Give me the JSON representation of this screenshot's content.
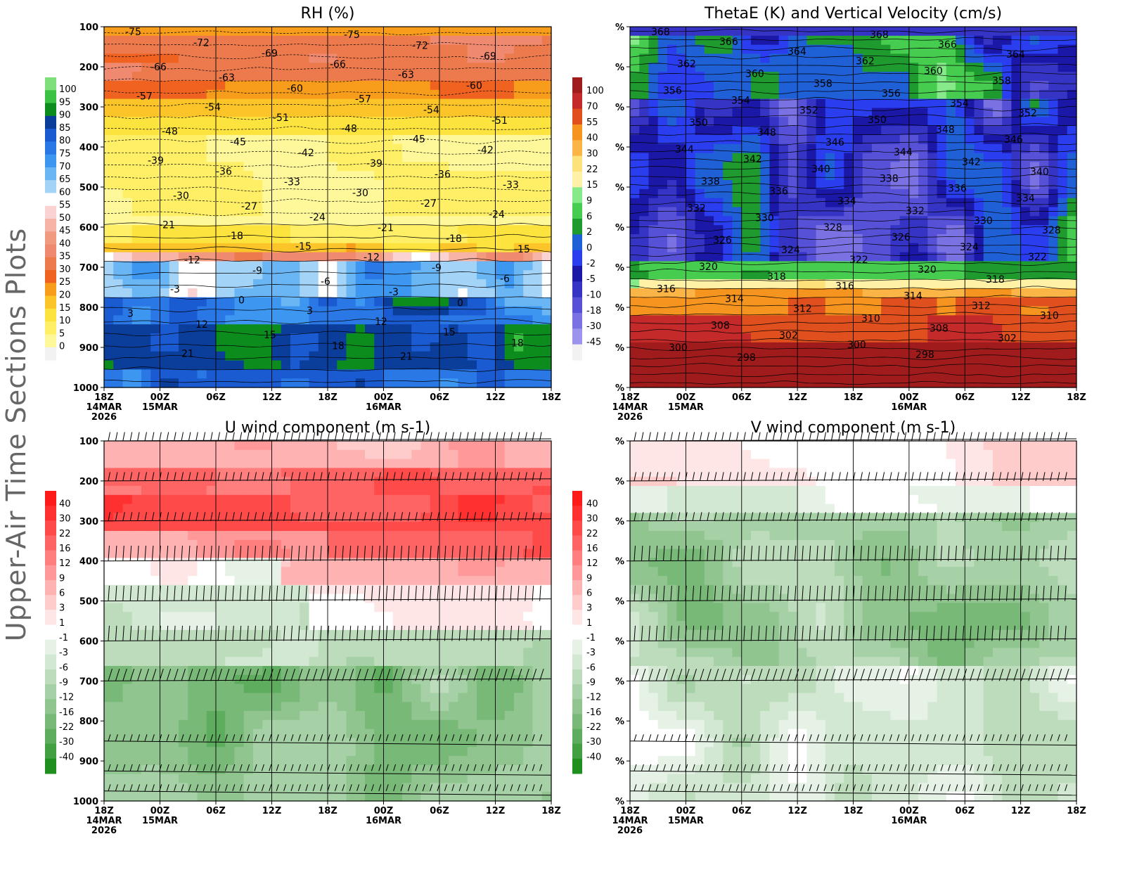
{
  "page_title": "Upper-Air Time Sections Plots",
  "chart_data": [
    {
      "id": "rh",
      "type": "heatmap",
      "title": "RH (%)",
      "y_ticks": [
        "100",
        "200",
        "300",
        "400",
        "500",
        "600",
        "700",
        "800",
        "900",
        "1000"
      ],
      "x_ticks": [
        {
          "label": "18Z",
          "date": "14MAR",
          "year": "2026"
        },
        {
          "label": "00Z",
          "date": "15MAR"
        },
        {
          "label": "06Z"
        },
        {
          "label": "12Z"
        },
        {
          "label": "18Z"
        },
        {
          "label": "00Z",
          "date": "16MAR"
        },
        {
          "label": "06Z"
        },
        {
          "label": "12Z"
        },
        {
          "label": "18Z"
        }
      ],
      "colorbar": {
        "levels": [
          "100",
          "95",
          "90",
          "85",
          "80",
          "75",
          "70",
          "65",
          "60",
          "55",
          "50",
          "45",
          "40",
          "35",
          "30",
          "25",
          "20",
          "15",
          "10",
          "5",
          "0"
        ],
        "colors": [
          "#7de07a",
          "#3cc243",
          "#0d8c1e",
          "#0b3d9a",
          "#1a5bd1",
          "#2a78e6",
          "#3d96f0",
          "#6ab6f5",
          "#a3d3f7",
          "#ffffff",
          "#fbd2d2",
          "#f7b3a6",
          "#f29a80",
          "#ef8a70",
          "#ec7a4c",
          "#f0621f",
          "#f89c1c",
          "#fbc52a",
          "#fde33e",
          "#ffef66",
          "#fff89a",
          "#f2f2f2"
        ]
      },
      "contour_labels": [
        "-75",
        "-72",
        "-69",
        "-66",
        "-63",
        "-60",
        "-57",
        "-54",
        "-51",
        "-48",
        "-45",
        "-42",
        "-39",
        "-36",
        "-33",
        "-30",
        "-27",
        "-24",
        "-21",
        "-18",
        "-15",
        "-12",
        "-9",
        "-6",
        "-3",
        "0",
        "3",
        "12",
        "15",
        "18",
        "21"
      ]
    },
    {
      "id": "thetae",
      "type": "heatmap",
      "title": "ThetaE (K) and Vertical Velocity (cm/s)",
      "y_ticks": [
        "%",
        "%",
        "%",
        "%",
        "%",
        "%",
        "%",
        "%",
        "%",
        "%"
      ],
      "x_ticks": [
        {
          "label": "18Z",
          "date": "14MAR",
          "year": "2026"
        },
        {
          "label": "00Z",
          "date": "15MAR"
        },
        {
          "label": "06Z"
        },
        {
          "label": "12Z"
        },
        {
          "label": "18Z"
        },
        {
          "label": "00Z",
          "date": "16MAR"
        },
        {
          "label": "06Z"
        },
        {
          "label": "12Z"
        },
        {
          "label": "18Z"
        }
      ],
      "colorbar": {
        "levels": [
          "100",
          "70",
          "55",
          "40",
          "30",
          "22",
          "15",
          "9",
          "6",
          "2",
          "0",
          "-2",
          "-5",
          "-10",
          "-18",
          "-30",
          "-45"
        ],
        "colors": [
          "#a01c1c",
          "#c42a2a",
          "#e0501e",
          "#f5941e",
          "#fbb446",
          "#fde17a",
          "#fff2a6",
          "#86e98a",
          "#46cc4f",
          "#1e9a2e",
          "#1f60d6",
          "#2a3ef0",
          "#1b18a8",
          "#3634c4",
          "#5651d6",
          "#7a72e2",
          "#9c93ec",
          "#f2f2f2"
        ]
      },
      "contour_labels": [
        "368",
        "366",
        "364",
        "362",
        "360",
        "358",
        "356",
        "354",
        "352",
        "350",
        "348",
        "346",
        "344",
        "342",
        "340",
        "338",
        "336",
        "334",
        "332",
        "330",
        "328",
        "326",
        "324",
        "322",
        "320",
        "318",
        "316",
        "314",
        "312",
        "310",
        "308",
        "302",
        "300",
        "298"
      ]
    },
    {
      "id": "uwind",
      "type": "heatmap",
      "title": "U wind component (m s-1)",
      "y_ticks": [
        "100",
        "200",
        "300",
        "400",
        "500",
        "600",
        "700",
        "800",
        "900",
        "1000"
      ],
      "x_ticks": [
        {
          "label": "18Z",
          "date": "14MAR",
          "year": "2026"
        },
        {
          "label": "00Z",
          "date": "15MAR"
        },
        {
          "label": "06Z"
        },
        {
          "label": "12Z"
        },
        {
          "label": "18Z"
        },
        {
          "label": "00Z",
          "date": "16MAR"
        },
        {
          "label": "06Z"
        },
        {
          "label": "12Z"
        },
        {
          "label": "18Z"
        }
      ],
      "colorbar": {
        "levels": [
          "40",
          "30",
          "22",
          "16",
          "12",
          "9",
          "6",
          "3",
          "1",
          "-1",
          "-3",
          "-6",
          "-9",
          "-12",
          "-16",
          "-22",
          "-30",
          "-40"
        ],
        "colors": [
          "#ff1a1a",
          "#ff3030",
          "#ff4a4a",
          "#ff6464",
          "#ff7e7e",
          "#ff9898",
          "#ffb2b2",
          "#ffcccc",
          "#ffe6e6",
          "#ffffff",
          "#e6f2e6",
          "#d2e8d2",
          "#bcdcbc",
          "#a6d0a6",
          "#90c590",
          "#78b978",
          "#5eac5e",
          "#42a042",
          "#1f8f1f"
        ]
      },
      "barb_levels_hpa": [
        100,
        200,
        300,
        400,
        500,
        600,
        700,
        850,
        925,
        975
      ]
    },
    {
      "id": "vwind",
      "type": "heatmap",
      "title": "V wind component (m s-1)",
      "y_ticks": [
        "%",
        "%",
        "%",
        "%",
        "%",
        "%",
        "%",
        "%",
        "%",
        "%"
      ],
      "x_ticks": [
        {
          "label": "18Z",
          "date": "14MAR",
          "year": "2026"
        },
        {
          "label": "00Z",
          "date": "15MAR"
        },
        {
          "label": "06Z"
        },
        {
          "label": "12Z"
        },
        {
          "label": "18Z"
        },
        {
          "label": "00Z",
          "date": "16MAR"
        },
        {
          "label": "06Z"
        },
        {
          "label": "12Z"
        },
        {
          "label": "18Z"
        }
      ],
      "colorbar": {
        "levels": [
          "40",
          "30",
          "22",
          "16",
          "12",
          "9",
          "6",
          "3",
          "1",
          "-1",
          "-3",
          "-6",
          "-9",
          "-12",
          "-16",
          "-22",
          "-30",
          "-40"
        ],
        "colors": [
          "#ff1a1a",
          "#ff3030",
          "#ff4a4a",
          "#ff6464",
          "#ff7e7e",
          "#ff9898",
          "#ffb2b2",
          "#ffcccc",
          "#ffe6e6",
          "#ffffff",
          "#e6f2e6",
          "#d2e8d2",
          "#bcdcbc",
          "#a6d0a6",
          "#90c590",
          "#78b978",
          "#5eac5e",
          "#42a042",
          "#1f8f1f"
        ]
      },
      "barb_levels_hpa": [
        100,
        200,
        300,
        400,
        500,
        600,
        700,
        850,
        925,
        975
      ]
    }
  ]
}
